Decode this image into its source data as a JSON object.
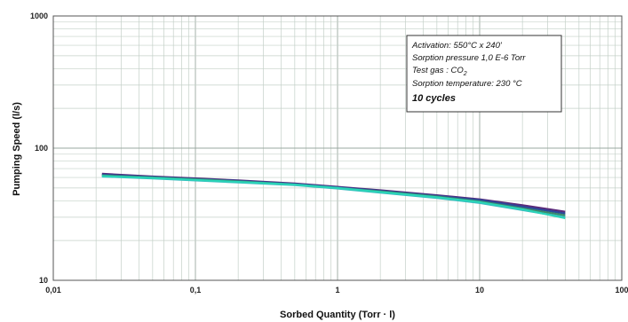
{
  "chart_data": {
    "type": "line",
    "xlabel": "Sorbed Quantity (Torr · l)",
    "ylabel": "Pumping Speed (l/s)",
    "x_scale": "log",
    "y_scale": "log",
    "xlim": [
      0.01,
      100
    ],
    "ylim": [
      10,
      1000
    ],
    "grid": true,
    "x_ticks": [
      {
        "value": 0.01,
        "label": "0,01"
      },
      {
        "value": 0.1,
        "label": "0,1"
      },
      {
        "value": 1,
        "label": "1"
      },
      {
        "value": 10,
        "label": "10"
      },
      {
        "value": 100,
        "label": "100"
      }
    ],
    "y_ticks": [
      {
        "value": 10,
        "label": "10"
      },
      {
        "value": 100,
        "label": "100"
      },
      {
        "value": 1000,
        "label": "1000"
      }
    ],
    "annotation": {
      "lines": [
        "Activation: 550°C x 240'",
        "Sorption pressure 1,0 E-6 Torr",
        "Test gas : CO",
        "Sorption temperature: 230 °C"
      ],
      "gas_subscript": "2",
      "emphasis": "10 cycles"
    },
    "series": [
      {
        "color": "#5a2a7a",
        "x": [
          0.022,
          0.05,
          0.1,
          0.2,
          0.5,
          1,
          2,
          5,
          10,
          20,
          40
        ],
        "y": [
          64,
          61,
          59,
          57,
          54,
          51,
          48,
          44,
          41,
          37,
          33
        ]
      },
      {
        "color": "#2a4a9a",
        "x": [
          0.022,
          0.05,
          0.1,
          0.2,
          0.5,
          1,
          2,
          5,
          10,
          20,
          40
        ],
        "y": [
          63,
          60.5,
          58.5,
          56.5,
          53.5,
          50.5,
          47.5,
          43.5,
          40.5,
          36,
          32
        ]
      },
      {
        "color": "#3a8a6a",
        "x": [
          0.022,
          0.05,
          0.1,
          0.2,
          0.5,
          1,
          2,
          5,
          10,
          20,
          40
        ],
        "y": [
          62,
          60,
          58,
          56,
          53,
          50,
          47,
          43,
          39.5,
          35,
          31
        ]
      },
      {
        "color": "#3ab8c0",
        "x": [
          0.022,
          0.05,
          0.1,
          0.2,
          0.5,
          1,
          2,
          5,
          10,
          20,
          40
        ],
        "y": [
          61,
          59,
          57,
          55,
          52.5,
          49.5,
          46,
          42,
          38.5,
          34,
          30
        ]
      },
      {
        "color": "#2ad4b8",
        "x": [
          0.022,
          0.05,
          0.1,
          0.2,
          0.5,
          1,
          2,
          5,
          10,
          20,
          40
        ],
        "y": [
          61.5,
          59.5,
          57.5,
          55.5,
          53,
          50,
          46.5,
          42.5,
          39,
          34.5,
          29.5
        ]
      }
    ]
  }
}
